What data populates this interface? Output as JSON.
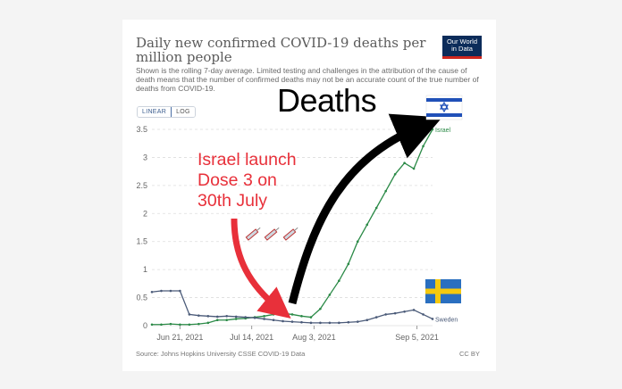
{
  "title": "Daily new confirmed COVID-19 deaths per million people",
  "subtitle": "Shown is the rolling 7-day average. Limited testing and challenges in the attribution of the cause of death means that the number of confirmed deaths may not be an accurate count of the true number of deaths from COVID-19.",
  "logo": {
    "line1": "Our World",
    "line2": "in Data"
  },
  "scale_toggle": {
    "linear": "LINEAR",
    "log": "LOG"
  },
  "footer": {
    "source": "Source: Johns Hopkins University CSSE COVID-19 Data",
    "license": "CC BY"
  },
  "annotations": {
    "deaths": "Deaths",
    "launch": "Israel launch\nDose 3 on\n30th July"
  },
  "colors": {
    "israel": "#2b8a47",
    "sweden": "#4a5a78",
    "arrow_red": "#e8303a",
    "arrow_black": "#000000",
    "grid": "#dddddd"
  },
  "icons": [
    "syringe-icon",
    "syringe-icon",
    "syringe-icon",
    "israel-flag-icon",
    "sweden-flag-icon"
  ],
  "chart_data": {
    "type": "line",
    "x": [
      "2021-06-12",
      "2021-06-15",
      "2021-06-18",
      "2021-06-21",
      "2021-06-24",
      "2021-06-27",
      "2021-06-30",
      "2021-07-03",
      "2021-07-06",
      "2021-07-09",
      "2021-07-12",
      "2021-07-15",
      "2021-07-18",
      "2021-07-21",
      "2021-07-24",
      "2021-07-27",
      "2021-07-30",
      "2021-08-02",
      "2021-08-05",
      "2021-08-08",
      "2021-08-11",
      "2021-08-14",
      "2021-08-17",
      "2021-08-20",
      "2021-08-23",
      "2021-08-26",
      "2021-08-29",
      "2021-09-01",
      "2021-09-04",
      "2021-09-07",
      "2021-09-10"
    ],
    "series": [
      {
        "name": "Israel",
        "values": [
          0.02,
          0.02,
          0.03,
          0.02,
          0.02,
          0.03,
          0.05,
          0.1,
          0.1,
          0.12,
          0.13,
          0.15,
          0.17,
          0.2,
          0.22,
          0.2,
          0.17,
          0.15,
          0.3,
          0.55,
          0.8,
          1.1,
          1.5,
          1.8,
          2.1,
          2.4,
          2.7,
          2.9,
          2.8,
          3.2,
          3.5
        ]
      },
      {
        "name": "Sweden",
        "values": [
          0.6,
          0.62,
          0.62,
          0.62,
          0.2,
          0.18,
          0.17,
          0.16,
          0.17,
          0.16,
          0.15,
          0.14,
          0.12,
          0.1,
          0.08,
          0.07,
          0.06,
          0.05,
          0.05,
          0.05,
          0.05,
          0.06,
          0.07,
          0.1,
          0.15,
          0.2,
          0.22,
          0.25,
          0.28,
          0.2,
          0.12
        ]
      }
    ],
    "x_ticks": [
      {
        "x": "2021-06-21",
        "label": "Jun 21, 2021"
      },
      {
        "x": "2021-07-14",
        "label": "Jul 14, 2021"
      },
      {
        "x": "2021-08-03",
        "label": "Aug 3, 2021"
      },
      {
        "x": "2021-09-05",
        "label": "Sep 5, 2021"
      }
    ],
    "y_ticks": [
      0,
      0.5,
      1,
      1.5,
      2,
      2.5,
      3,
      3.5
    ],
    "y_tick_labels": [
      "0",
      "0.5",
      "1",
      "1.5",
      "2",
      "2.5",
      "3",
      "3.5"
    ],
    "ylim": [
      0,
      3.5
    ],
    "grid": true,
    "legend": "end-of-line labels"
  }
}
